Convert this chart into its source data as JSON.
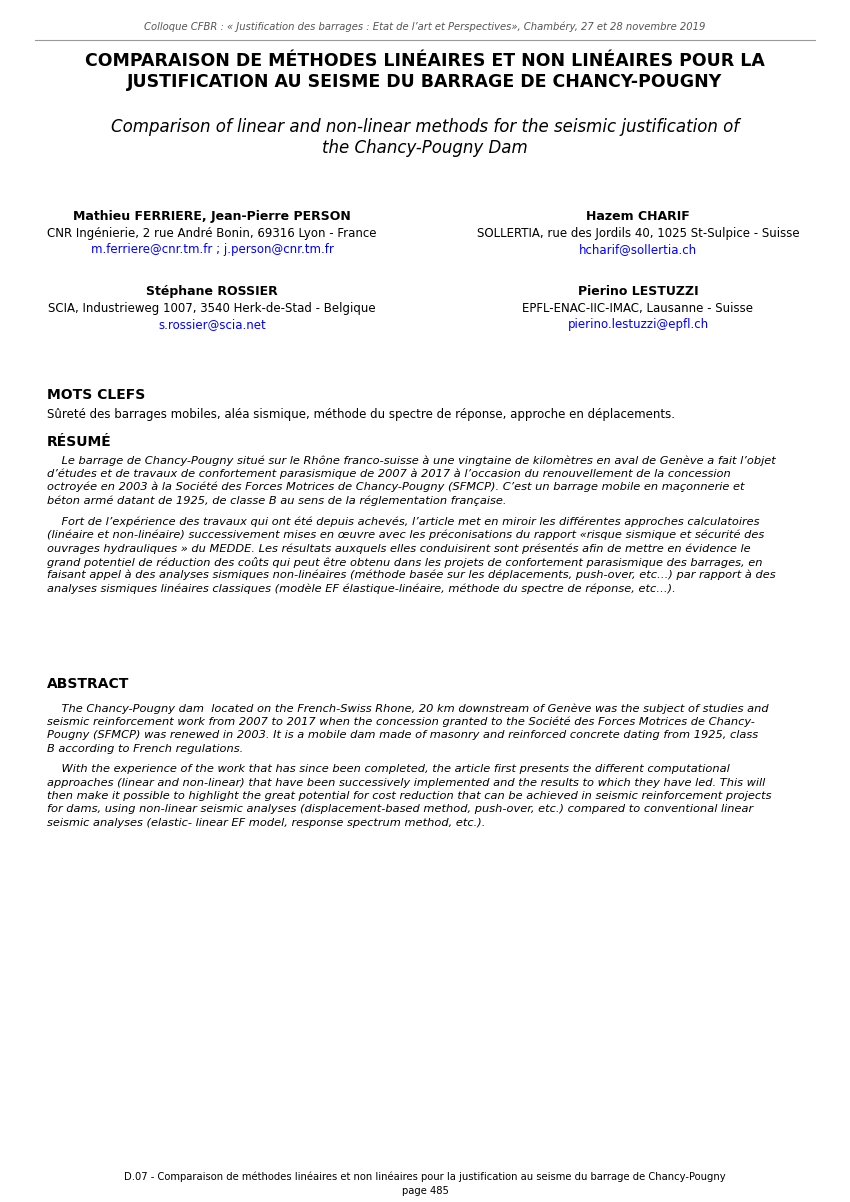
{
  "header_text": "Colloque CFBR : « Justification des barrages : Etat de l’art et Perspectives», Chambéry, 27 et 28 novembre 2019",
  "title_fr": "COMPARAISON DE MÉTHODES LINÉAIRES ET NON LINÉAIRES POUR LA\nJUSTIFICATION AU SEISME DU BARRAGE DE CHANCY-POUGNY",
  "title_en": "Comparison of linear and non-linear methods for the seismic justification of\nthe Chancy-Pougny Dam",
  "author1_name": "Mathieu FERRIERE, Jean-Pierre PERSON",
  "author1_affil": "CNR Ingénierie, 2 rue André Bonin, 69316 Lyon - France",
  "author1_email": "m.ferriere@cnr.tm.fr ; j.person@cnr.tm.fr",
  "author2_name": "Hazem CHARIF",
  "author2_affil": "SOLLERTIA, rue des Jordils 40, 1025 St-Sulpice - Suisse",
  "author2_email": "hcharif@sollertia.ch",
  "author3_name": "Stéphane ROSSIER",
  "author3_affil": "SCIA, Industrieweg 1007, 3540 Herk-de-Stad - Belgique",
  "author3_email": "s.rossier@scia.net",
  "author4_name": "Pierino LESTUZZI",
  "author4_affil": "EPFL-ENAC-IIC-IMAC, Lausanne - Suisse",
  "author4_email": "pierino.lestuzzi@epfl.ch",
  "mots_clefs_title": "MOTS CLEFS",
  "mots_clefs_text": "Sûreté des barrages mobiles, aléa sismique, méthode du spectre de réponse, approche en déplacements.",
  "resume_title": "RÉSUMÉ",
  "abstract_title": "ABSTRACT",
  "footer_line1": "D.07 - Comparaison de méthodes linéaires et non linéaires pour la justification au seisme du barrage de Chancy-Pougny",
  "footer_line2": "page 485",
  "bg_color": "#ffffff",
  "text_color": "#000000",
  "link_color": "#0000ff",
  "header_color": "#555555",
  "gray_box_color": "#efefef"
}
